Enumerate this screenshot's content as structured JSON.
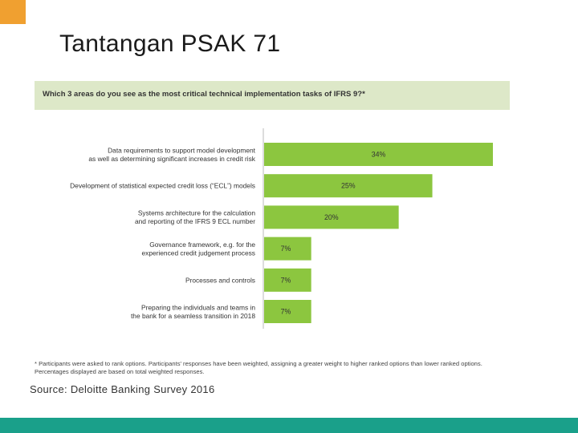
{
  "slide": {
    "title": "Tantangan PSAK 71",
    "source": "Source: Deloitte Banking Survey 2016",
    "accent_color": "#f0a030",
    "bottom_bar_color": "#1aa08a"
  },
  "chart_data": {
    "type": "bar",
    "orientation": "horizontal",
    "title": "Which 3 areas do you see as the most critical technical implementation tasks of IFRS 9?*",
    "categories": [
      [
        "Data requirements to support model development",
        "as well as determining significant increases in credit risk"
      ],
      [
        "Development of statistical expected credit loss (“ECL”) models"
      ],
      [
        "Systems architecture for the calculation",
        "and reporting of the IFRS 9 ECL number"
      ],
      [
        "Governance framework, e.g. for the",
        "experienced credit judgement process"
      ],
      [
        "Processes and controls"
      ],
      [
        "Preparing the individuals and teams in",
        "the bank for a seamless transition in 2018"
      ]
    ],
    "values": [
      34,
      25,
      20,
      7,
      7,
      7
    ],
    "value_labels": [
      "34%",
      "25%",
      "20%",
      "7%",
      "7%",
      "7%"
    ],
    "xlim": [
      0,
      34
    ],
    "bar_color": "#8cc63f",
    "footnote": "* Participants were asked to rank options. Participants' responses have been weighted, assigning a greater weight to higher ranked options than lower ranked options. Percentages displayed are based on total weighted responses."
  }
}
